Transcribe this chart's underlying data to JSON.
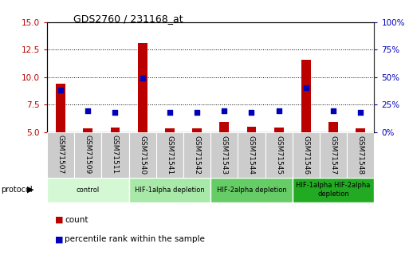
{
  "title": "GDS2760 / 231168_at",
  "samples": [
    "GSM71507",
    "GSM71509",
    "GSM71511",
    "GSM71540",
    "GSM71541",
    "GSM71542",
    "GSM71543",
    "GSM71544",
    "GSM71545",
    "GSM71546",
    "GSM71547",
    "GSM71548"
  ],
  "count_values": [
    9.4,
    5.3,
    5.4,
    13.1,
    5.3,
    5.3,
    5.9,
    5.5,
    5.4,
    11.6,
    5.9,
    5.3
  ],
  "percentile_values": [
    8.8,
    6.9,
    6.8,
    9.9,
    6.8,
    6.8,
    6.9,
    6.8,
    6.9,
    9.0,
    6.9,
    6.8
  ],
  "ylim_left": [
    5,
    15
  ],
  "ylim_right": [
    0,
    100
  ],
  "yticks_left": [
    5,
    7.5,
    10,
    12.5,
    15
  ],
  "yticks_right": [
    0,
    25,
    50,
    75,
    100
  ],
  "ytick_labels_right": [
    "0%",
    "25%",
    "50%",
    "75%",
    "100%"
  ],
  "bar_color": "#bb0000",
  "dot_color": "#0000bb",
  "protocol_groups": [
    {
      "label": "control",
      "start": 0,
      "end": 2,
      "color": "#d4f7d4"
    },
    {
      "label": "HIF-1alpha depletion",
      "start": 3,
      "end": 5,
      "color": "#a8e8a8"
    },
    {
      "label": "HIF-2alpha depletion",
      "start": 6,
      "end": 8,
      "color": "#66cc66"
    },
    {
      "label": "HIF-1alpha HIF-2alpha\ndepletion",
      "start": 9,
      "end": 11,
      "color": "#22aa22"
    }
  ],
  "bar_width": 0.35,
  "dot_size": 25,
  "background_color": "#ffffff",
  "plot_bg_color": "#ffffff",
  "xtick_bg_color": "#cccccc"
}
